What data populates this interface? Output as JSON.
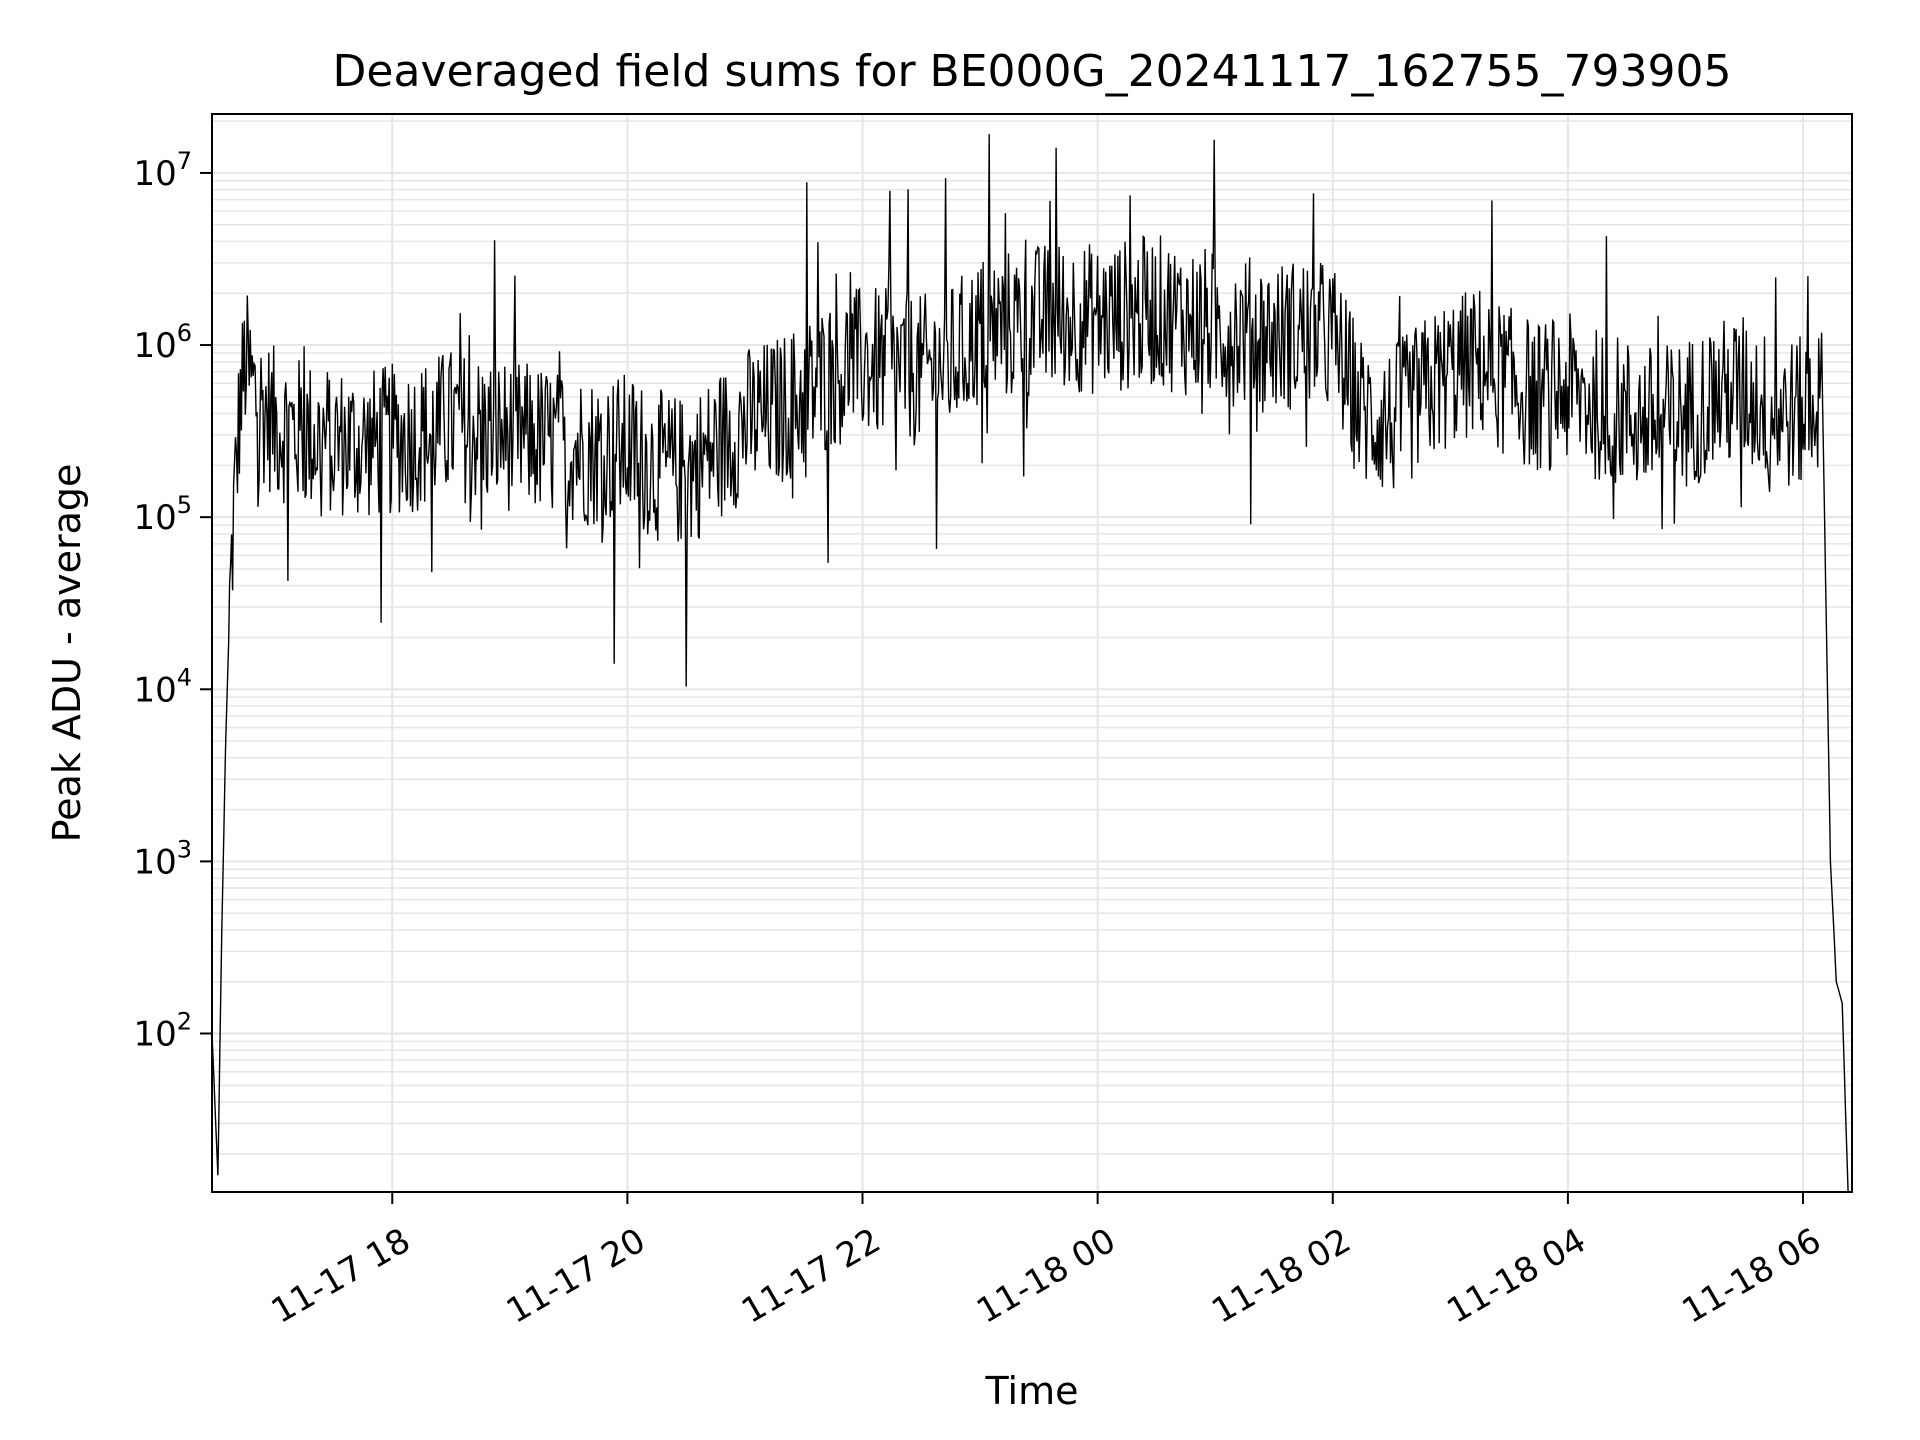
{
  "chart_data": {
    "type": "line",
    "title": "Deaveraged field sums for BE000G_20241117_162755_793905",
    "xlabel": "Time",
    "ylabel": "Peak ADU - average",
    "yscale": "log",
    "ylim": [
      12,
      22000000
    ],
    "xlim": [
      "2024-11-17 16:28",
      "2024-11-18 06:25"
    ],
    "grid": true,
    "line_color": "#000000",
    "grid_color": "#e6e6e6",
    "x_ticks": [
      {
        "value": "2024-11-17 18:00",
        "label": "11-17 18"
      },
      {
        "value": "2024-11-17 20:00",
        "label": "11-17 20"
      },
      {
        "value": "2024-11-17 22:00",
        "label": "11-17 22"
      },
      {
        "value": "2024-11-18 00:00",
        "label": "11-18 00"
      },
      {
        "value": "2024-11-18 02:00",
        "label": "11-18 02"
      },
      {
        "value": "2024-11-18 04:00",
        "label": "11-18 04"
      },
      {
        "value": "2024-11-18 06:00",
        "label": "11-18 06"
      }
    ],
    "y_ticks": [
      {
        "value": 100,
        "base": "10",
        "exp": "2"
      },
      {
        "value": 1000,
        "base": "10",
        "exp": "3"
      },
      {
        "value": 10000,
        "base": "10",
        "exp": "4"
      },
      {
        "value": 100000,
        "base": "10",
        "exp": "5"
      },
      {
        "value": 1000000,
        "base": "10",
        "exp": "6"
      },
      {
        "value": 10000000,
        "base": "10",
        "exp": "7"
      }
    ],
    "series": [
      {
        "x": [
          "2024-11-17 16:28",
          "2024-11-17 16:31",
          "2024-11-17 16:33",
          "2024-11-17 16:35",
          "2024-11-17 16:37",
          "2024-11-17 16:39",
          "2024-11-17 16:42",
          "2024-11-17 16:45",
          "2024-11-17 16:50",
          "2024-11-17 17:00",
          "2024-11-17 17:15",
          "2024-11-17 17:30",
          "2024-11-17 17:45",
          "2024-11-17 18:00",
          "2024-11-17 18:15",
          "2024-11-17 18:30",
          "2024-11-17 18:45",
          "2024-11-17 19:00",
          "2024-11-17 19:15",
          "2024-11-17 19:30",
          "2024-11-17 19:45",
          "2024-11-17 20:00",
          "2024-11-17 20:15",
          "2024-11-17 20:30",
          "2024-11-17 20:45",
          "2024-11-17 21:00",
          "2024-11-17 21:15",
          "2024-11-17 21:30",
          "2024-11-17 21:45",
          "2024-11-17 22:00",
          "2024-11-17 22:15",
          "2024-11-17 22:30",
          "2024-11-17 22:45",
          "2024-11-17 23:00",
          "2024-11-17 23:15",
          "2024-11-17 23:30",
          "2024-11-17 23:45",
          "2024-11-18 00:00",
          "2024-11-18 00:15",
          "2024-11-18 00:30",
          "2024-11-18 00:45",
          "2024-11-18 01:00",
          "2024-11-18 01:15",
          "2024-11-18 01:30",
          "2024-11-18 01:45",
          "2024-11-18 02:00",
          "2024-11-18 02:15",
          "2024-11-18 02:30",
          "2024-11-18 02:45",
          "2024-11-18 03:00",
          "2024-11-18 03:15",
          "2024-11-18 03:30",
          "2024-11-18 03:45",
          "2024-11-18 04:00",
          "2024-11-18 04:15",
          "2024-11-18 04:30",
          "2024-11-18 04:45",
          "2024-11-18 05:00",
          "2024-11-18 05:15",
          "2024-11-18 05:30",
          "2024-11-18 05:45",
          "2024-11-18 06:00",
          "2024-11-18 06:05",
          "2024-11-18 06:10",
          "2024-11-18 06:14",
          "2024-11-18 06:17",
          "2024-11-18 06:20",
          "2024-11-18 06:23"
        ],
        "y": [
          100,
          15,
          400,
          5000,
          30000,
          100000,
          400000,
          800000,
          500000,
          350000,
          300000,
          280000,
          260000,
          280000,
          300000,
          350000,
          320000,
          300000,
          280000,
          260000,
          240000,
          250000,
          200000,
          180000,
          250000,
          350000,
          400000,
          500000,
          700000,
          800000,
          750000,
          700000,
          800000,
          1200000,
          1300000,
          1400000,
          1500000,
          1400000,
          1500000,
          1600000,
          1400000,
          1300000,
          1200000,
          1100000,
          1200000,
          1100000,
          400000,
          350000,
          500000,
          700000,
          800000,
          600000,
          500000,
          550000,
          450000,
          400000,
          350000,
          400000,
          500000,
          550000,
          400000,
          400000,
          500000,
          450000,
          1000,
          200,
          150,
          12
        ]
      }
    ]
  }
}
